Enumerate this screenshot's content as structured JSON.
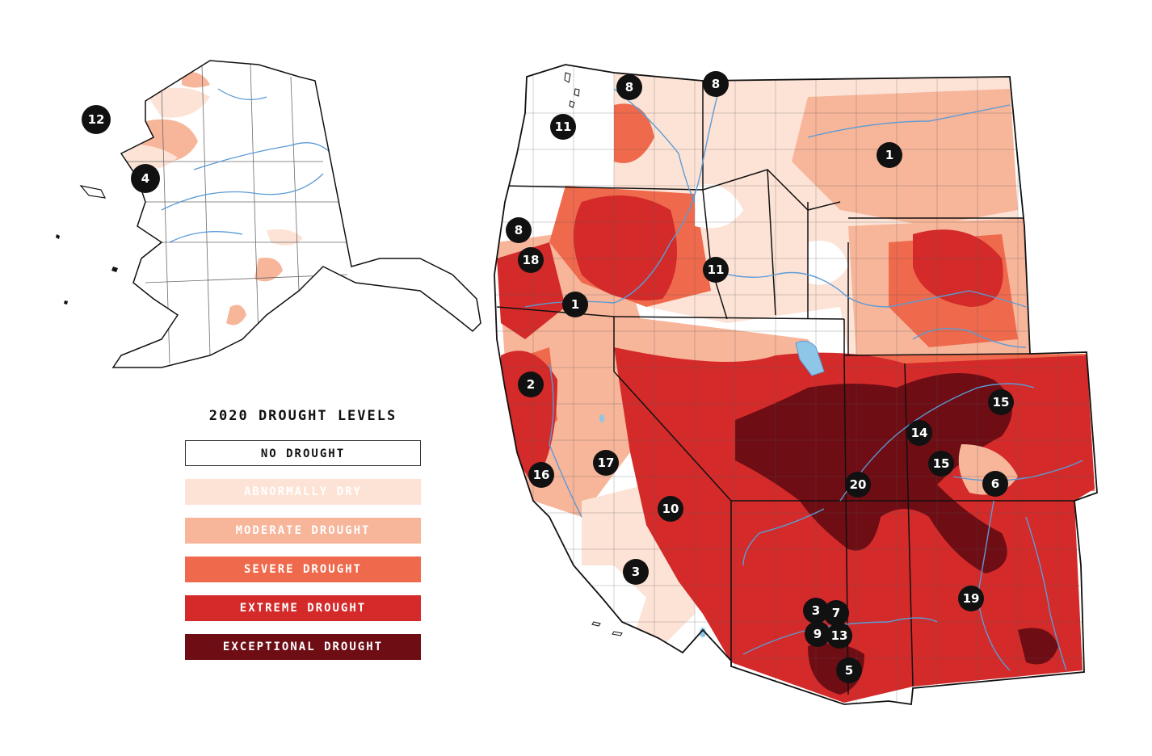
{
  "legend": {
    "title": "2020 DROUGHT LEVELS",
    "items": [
      {
        "label": "NO DROUGHT",
        "fill": "#ffffff",
        "text": "#111111",
        "border": "#333333"
      },
      {
        "label": "ABNORMALLY DRY",
        "fill": "#fde3d6",
        "text": "#ffffff",
        "border": "none"
      },
      {
        "label": "MODERATE DROUGHT",
        "fill": "#f7b59a",
        "text": "#ffffff",
        "border": "none"
      },
      {
        "label": "SEVERE DROUGHT",
        "fill": "#ef6a4c",
        "text": "#ffffff",
        "border": "none"
      },
      {
        "label": "EXTREME DROUGHT",
        "fill": "#d42a2a",
        "text": "#ffffff",
        "border": "none"
      },
      {
        "label": "EXCEPTIONAL DROUGHT",
        "fill": "#6e0d14",
        "text": "#ffffff",
        "border": "none"
      }
    ]
  },
  "colors": {
    "water": "#5b9bd5",
    "lake": "#8ec6e8",
    "border": "#111111"
  },
  "markers": [
    "12",
    "4",
    "8",
    "8",
    "11",
    "1",
    "8",
    "18",
    "11",
    "1",
    "2",
    "16",
    "17",
    "10",
    "3",
    "20",
    "14",
    "15",
    "15",
    "6",
    "19",
    "3",
    "7",
    "9",
    "13",
    "5"
  ]
}
